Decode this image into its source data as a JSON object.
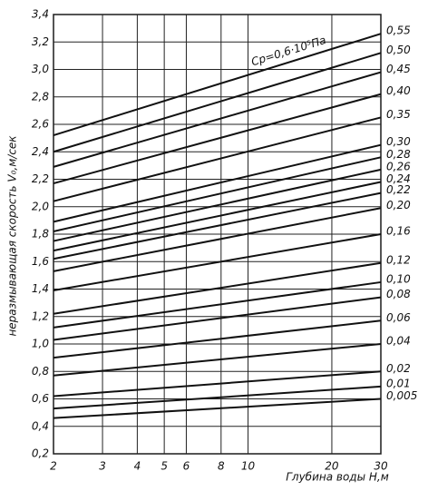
{
  "chart_data": {
    "type": "line",
    "y_label": "неразмывающая скорость V₀,м/сек",
    "x_label": "Глубина воды Н,м",
    "annotation": "Cp=0,6·10⁵Па",
    "x": [
      2,
      30
    ],
    "xlim": [
      2,
      30
    ],
    "xscale": "log",
    "xticks": [
      2,
      3,
      4,
      5,
      6,
      8,
      10,
      20,
      30
    ],
    "ylim": [
      0.2,
      3.4
    ],
    "yticks": [
      {
        "value": 0.2,
        "label": "0,2"
      },
      {
        "value": 0.4,
        "label": "0,4"
      },
      {
        "value": 0.6,
        "label": "0,6"
      },
      {
        "value": 0.8,
        "label": "0,8"
      },
      {
        "value": 1.0,
        "label": "1,0"
      },
      {
        "value": 1.2,
        "label": "1,2"
      },
      {
        "value": 1.4,
        "label": "1,4"
      },
      {
        "value": 1.6,
        "label": "1,6"
      },
      {
        "value": 1.8,
        "label": "1,8"
      },
      {
        "value": 2.0,
        "label": "2,0"
      },
      {
        "value": 2.2,
        "label": "2,2"
      },
      {
        "value": 2.4,
        "label": "2,4"
      },
      {
        "value": 2.6,
        "label": "2,6"
      },
      {
        "value": 2.8,
        "label": "2,8"
      },
      {
        "value": 3.0,
        "label": "3,0"
      },
      {
        "value": 3.2,
        "label": "3,2"
      },
      {
        "value": 3.4,
        "label": "3,4"
      }
    ],
    "grid": true,
    "color": "#111111",
    "series": [
      {
        "name": "0,55",
        "values": [
          2.52,
          3.26
        ]
      },
      {
        "name": "0,50",
        "values": [
          2.4,
          3.12
        ]
      },
      {
        "name": "0,45",
        "values": [
          2.29,
          2.98
        ]
      },
      {
        "name": "0,40",
        "values": [
          2.17,
          2.82
        ]
      },
      {
        "name": "0,35",
        "values": [
          2.04,
          2.65
        ]
      },
      {
        "name": "0,30",
        "values": [
          1.89,
          2.45
        ]
      },
      {
        "name": "0,28",
        "values": [
          1.82,
          2.36
        ]
      },
      {
        "name": "0,26",
        "values": [
          1.75,
          2.27
        ]
      },
      {
        "name": "0,24",
        "values": [
          1.68,
          2.18
        ]
      },
      {
        "name": "0,22",
        "values": [
          1.62,
          2.1
        ]
      },
      {
        "name": "0,20",
        "values": [
          1.53,
          1.99
        ]
      },
      {
        "name": "0,16",
        "values": [
          1.39,
          1.8
        ]
      },
      {
        "name": "0,12",
        "values": [
          1.22,
          1.59
        ]
      },
      {
        "name": "0,10",
        "values": [
          1.12,
          1.45
        ]
      },
      {
        "name": "0,08",
        "values": [
          1.03,
          1.34
        ]
      },
      {
        "name": "0,06",
        "values": [
          0.9,
          1.17
        ]
      },
      {
        "name": "0,04",
        "values": [
          0.77,
          1.0
        ]
      },
      {
        "name": "0,02",
        "values": [
          0.62,
          0.8
        ]
      },
      {
        "name": "0,01",
        "values": [
          0.53,
          0.69
        ]
      },
      {
        "name": "0,005",
        "values": [
          0.46,
          0.6
        ]
      }
    ]
  }
}
